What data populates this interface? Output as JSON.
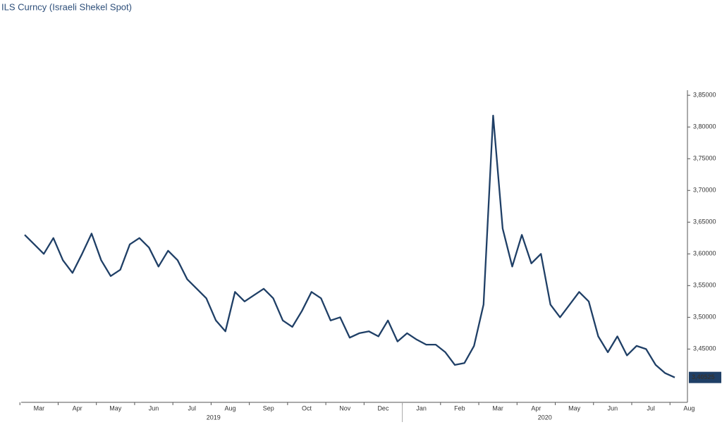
{
  "chart_data": {
    "type": "line",
    "title": "ILS Curncy (Israeli Shekel Spot)",
    "categories": [
      "Mar",
      null,
      null,
      null,
      "Apr",
      null,
      null,
      null,
      "May",
      null,
      null,
      null,
      "Jun",
      null,
      null,
      null,
      "Jul",
      null,
      null,
      null,
      "Aug",
      null,
      null,
      null,
      "Sep",
      null,
      null,
      null,
      "Oct",
      null,
      null,
      null,
      "Nov",
      null,
      null,
      null,
      "Dec",
      null,
      null,
      null,
      "Jan",
      null,
      null,
      null,
      "Feb",
      null,
      null,
      null,
      "Mar",
      null,
      null,
      null,
      "Apr",
      null,
      null,
      null,
      "May",
      null,
      null,
      null,
      "Jun",
      null,
      null,
      null,
      "Jul",
      null,
      null,
      null,
      "Aug"
    ],
    "years": [
      "2019",
      "2020"
    ],
    "values": [
      3.63,
      3.615,
      3.6,
      3.625,
      3.59,
      3.57,
      3.6,
      3.632,
      3.59,
      3.565,
      3.575,
      3.615,
      3.625,
      3.61,
      3.58,
      3.605,
      3.59,
      3.56,
      3.545,
      3.53,
      3.495,
      3.478,
      3.54,
      3.525,
      3.535,
      3.545,
      3.53,
      3.495,
      3.485,
      3.51,
      3.54,
      3.53,
      3.495,
      3.5,
      3.468,
      3.475,
      3.478,
      3.47,
      3.495,
      3.462,
      3.475,
      3.465,
      3.457,
      3.457,
      3.445,
      3.425,
      3.428,
      3.455,
      3.52,
      3.818,
      3.64,
      3.58,
      3.63,
      3.585,
      3.6,
      3.52,
      3.5,
      3.52,
      3.54,
      3.525,
      3.47,
      3.445,
      3.47,
      3.44,
      3.455,
      3.45,
      3.425,
      3.412,
      3.40525
    ],
    "value_labels": [
      null,
      null,
      null,
      null,
      null,
      null,
      null,
      null,
      null,
      null,
      null,
      null,
      null,
      null,
      null,
      null,
      null,
      null,
      null,
      null,
      null,
      null,
      null,
      null,
      null,
      null,
      null,
      null,
      null,
      null,
      null,
      null,
      null,
      null,
      null,
      null,
      null,
      null,
      null,
      null,
      null,
      null,
      null,
      null,
      null,
      null,
      null,
      null,
      null,
      null,
      null,
      null,
      null,
      null,
      null,
      null,
      null,
      null,
      null,
      null,
      null,
      null,
      null,
      null,
      null,
      null,
      null,
      null,
      "3,40525"
    ],
    "color": "#1f3f66",
    "ylim": [
      3.366,
      3.858
    ],
    "yticks": [
      {
        "value": 3.45,
        "label": "3,45000"
      },
      {
        "value": 3.5,
        "label": "3,50000"
      },
      {
        "value": 3.55,
        "label": "3,55000"
      },
      {
        "value": 3.6,
        "label": "3,60000"
      },
      {
        "value": 3.65,
        "label": "3,65000"
      },
      {
        "value": 3.7,
        "label": "3,70000"
      },
      {
        "value": 3.75,
        "label": "3,75000"
      },
      {
        "value": 3.8,
        "label": "3,80000"
      },
      {
        "value": 3.85,
        "label": "3,85000"
      }
    ]
  }
}
